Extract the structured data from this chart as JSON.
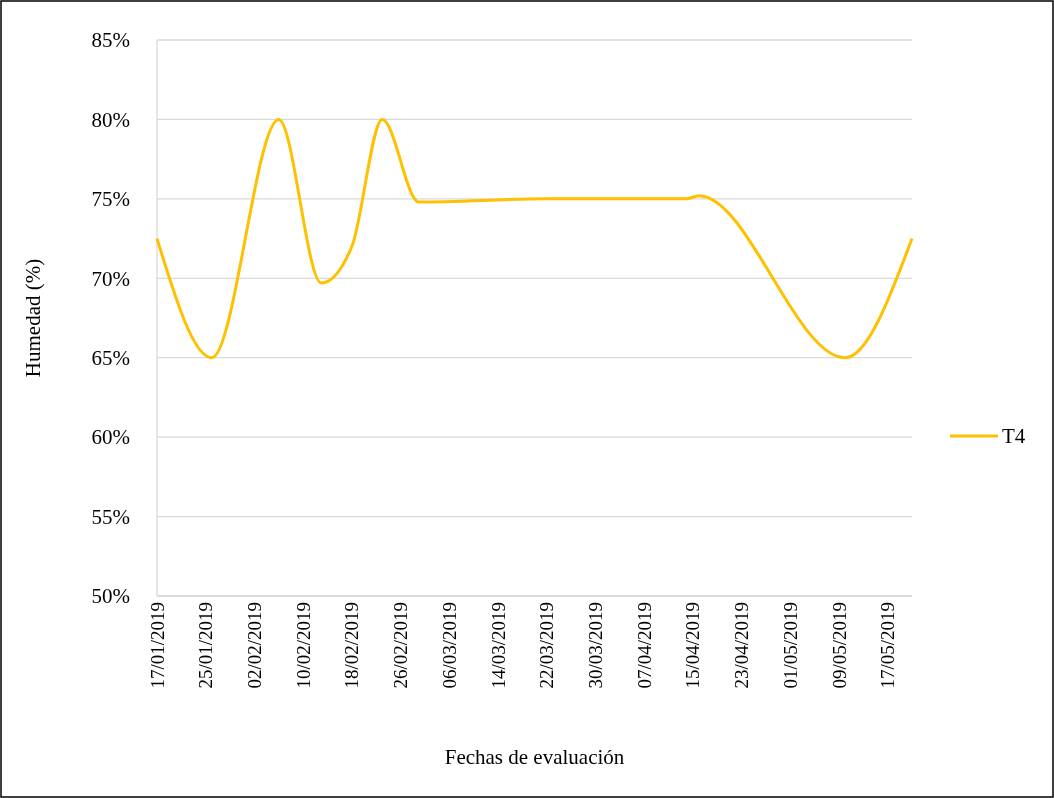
{
  "chart_data": {
    "type": "line",
    "xlabel": "Fechas de evaluación",
    "ylabel": "Humedad (%)",
    "x": [
      "2019-01-17",
      "2019-01-26",
      "2019-02-06",
      "2019-02-13",
      "2019-02-18",
      "2019-02-23",
      "2019-03-01",
      "2019-03-22",
      "2019-04-14",
      "2019-04-16",
      "2019-05-10",
      "2019-05-21"
    ],
    "series": [
      {
        "name": "T4",
        "color": "#ffc000",
        "values": [
          72.5,
          65,
          80,
          69.7,
          72,
          80,
          74.8,
          75,
          75,
          75.2,
          65,
          72.5
        ]
      }
    ],
    "xlim": [
      "2019-01-17",
      "2019-05-21"
    ],
    "xticks": [
      {
        "value": "2019-01-17",
        "label": "17/01/2019"
      },
      {
        "value": "2019-01-25",
        "label": "25/01/2019"
      },
      {
        "value": "2019-02-02",
        "label": "02/02/2019"
      },
      {
        "value": "2019-02-10",
        "label": "10/02/2019"
      },
      {
        "value": "2019-02-18",
        "label": "18/02/2019"
      },
      {
        "value": "2019-02-26",
        "label": "26/02/2019"
      },
      {
        "value": "2019-03-06",
        "label": "06/03/2019"
      },
      {
        "value": "2019-03-14",
        "label": "14/03/2019"
      },
      {
        "value": "2019-03-22",
        "label": "22/03/2019"
      },
      {
        "value": "2019-03-30",
        "label": "30/03/2019"
      },
      {
        "value": "2019-04-07",
        "label": "07/04/2019"
      },
      {
        "value": "2019-04-15",
        "label": "15/04/2019"
      },
      {
        "value": "2019-04-23",
        "label": "23/04/2019"
      },
      {
        "value": "2019-05-01",
        "label": "01/05/2019"
      },
      {
        "value": "2019-05-09",
        "label": "09/05/2019"
      },
      {
        "value": "2019-05-17",
        "label": "17/05/2019"
      }
    ],
    "ylim": [
      50,
      85
    ],
    "yticks": [
      {
        "value": 50,
        "label": "50%"
      },
      {
        "value": 55,
        "label": "55%"
      },
      {
        "value": 60,
        "label": "60%"
      },
      {
        "value": 65,
        "label": "65%"
      },
      {
        "value": 70,
        "label": "70%"
      },
      {
        "value": 75,
        "label": "75%"
      },
      {
        "value": 80,
        "label": "80%"
      },
      {
        "value": 85,
        "label": "85%"
      }
    ],
    "grid": "y",
    "legend": "right",
    "marker": "none",
    "line_style": "solid"
  }
}
